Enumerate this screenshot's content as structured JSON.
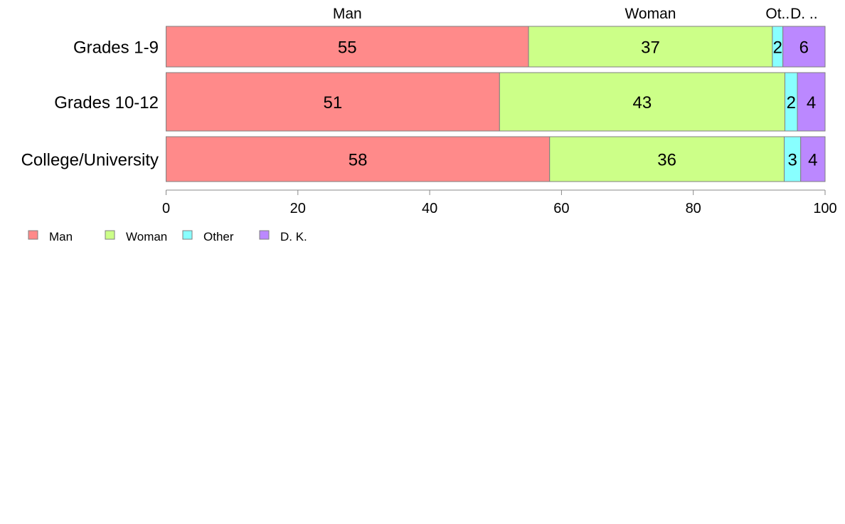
{
  "chart_data": {
    "type": "bar",
    "orientation": "horizontal",
    "stacked": true,
    "categories": [
      "Grades 1-9",
      "Grades 10-12",
      "College/University"
    ],
    "series": [
      {
        "name": "Man",
        "short_label": "Man",
        "color": "#ff8a8a",
        "values": [
          55,
          50.6,
          58.2
        ],
        "labels": [
          "55",
          "51",
          "58"
        ]
      },
      {
        "name": "Woman",
        "short_label": "Woman",
        "color": "#ccff88",
        "values": [
          37,
          43.3,
          35.6
        ],
        "labels": [
          "37",
          "43",
          "36"
        ]
      },
      {
        "name": "Other",
        "short_label": "Ot..",
        "color": "#88ffff",
        "values": [
          1.6,
          1.9,
          2.5
        ],
        "labels": [
          "2",
          "2",
          "3"
        ]
      },
      {
        "name": "D. K.",
        "short_label": "D. ..",
        "color": "#bb88ff",
        "values": [
          6.4,
          4.2,
          3.7
        ],
        "labels": [
          "6",
          "4",
          "4"
        ]
      }
    ],
    "xlim": [
      0,
      100
    ],
    "xticks": [
      0,
      20,
      40,
      60,
      80,
      100
    ],
    "legend_position": "bottom-left",
    "grid": false
  }
}
